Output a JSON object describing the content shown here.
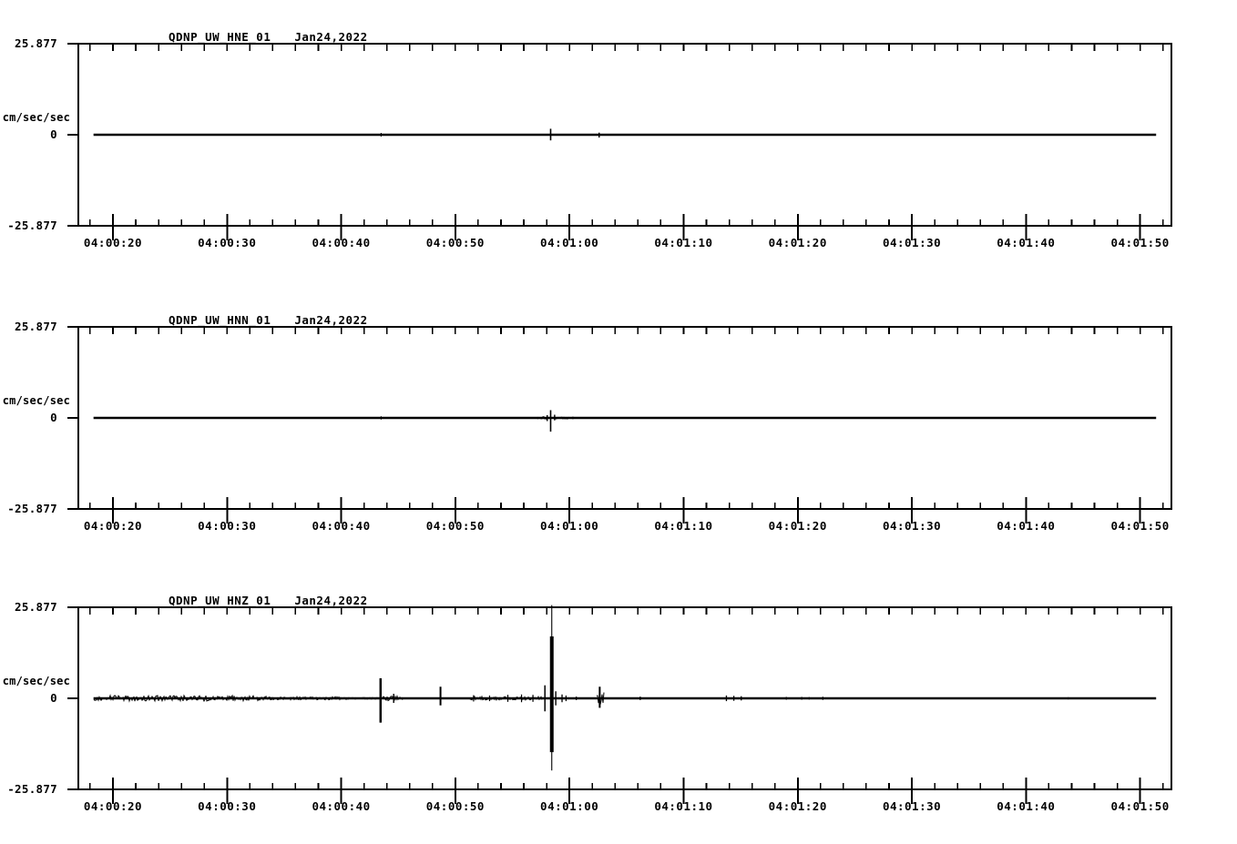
{
  "page": {
    "background": "#ffffff",
    "foreground": "#000000"
  },
  "chart_data": [
    {
      "type": "line",
      "kind": "seismogram",
      "title": "QDNP_UW_HNE_01",
      "date": "Jan24,2022",
      "ylabel": "cm/sec/sec",
      "y_ticks": [
        "25.877",
        "0",
        "-25.877"
      ],
      "ylim": [
        -25.877,
        25.877
      ],
      "x_axis": {
        "labels": [
          "04:00:20",
          "04:00:30",
          "04:00:40",
          "04:00:50",
          "04:01:00",
          "04:01:10",
          "04:01:20",
          "04:01:30",
          "04:01:40",
          "04:01:50"
        ],
        "label_secs": [
          20,
          30,
          40,
          50,
          60,
          70,
          80,
          90,
          100,
          110
        ],
        "minor_step_sec": 2,
        "t_min_sec": 16.97,
        "t_max_sec": 112.74
      },
      "trace": {
        "t_start_sec": 18.3,
        "t_end_sec": 111.4,
        "features": [
          {
            "type": "spike",
            "t": 43.5,
            "up": 0.5,
            "down": 0.5,
            "w": 1.2
          },
          {
            "type": "spike",
            "t": 58.35,
            "up": 1.7,
            "down": 1.6,
            "w": 1.6
          },
          {
            "type": "spike",
            "t": 62.6,
            "up": 0.6,
            "down": 0.8,
            "w": 1.4
          }
        ]
      }
    },
    {
      "type": "line",
      "kind": "seismogram",
      "title": "QDNP_UW_HNN_01",
      "date": "Jan24,2022",
      "ylabel": "cm/sec/sec",
      "y_ticks": [
        "25.877",
        "0",
        "-25.877"
      ],
      "ylim": [
        -25.877,
        25.877
      ],
      "x_axis": {
        "labels": [
          "04:00:20",
          "04:00:30",
          "04:00:40",
          "04:00:50",
          "04:01:00",
          "04:01:10",
          "04:01:20",
          "04:01:30",
          "04:01:40",
          "04:01:50"
        ],
        "label_secs": [
          20,
          30,
          40,
          50,
          60,
          70,
          80,
          90,
          100,
          110
        ],
        "minor_step_sec": 2,
        "t_min_sec": 16.97,
        "t_max_sec": 112.74
      },
      "trace": {
        "t_start_sec": 18.3,
        "t_end_sec": 111.4,
        "features": [
          {
            "type": "spike",
            "t": 43.5,
            "up": 0.45,
            "down": 0.45,
            "w": 1.2
          },
          {
            "type": "noise",
            "t0": 57.2,
            "t1": 58.0,
            "amp": 0.4
          },
          {
            "type": "spike",
            "t": 58.05,
            "up": 0.8,
            "down": 0.9,
            "w": 1.4
          },
          {
            "type": "spike",
            "t": 58.35,
            "up": 2.2,
            "down": 3.9,
            "w": 1.6
          },
          {
            "type": "spike",
            "t": 58.7,
            "up": 0.9,
            "down": 0.7,
            "w": 1.4
          },
          {
            "type": "noise",
            "t0": 58.6,
            "t1": 60.0,
            "amp": 0.3
          },
          {
            "type": "spike",
            "t": 60.3,
            "up": 0.35,
            "down": 0.35,
            "w": 1.2
          }
        ]
      }
    },
    {
      "type": "line",
      "kind": "seismogram",
      "title": "QDNP_UW_HNZ_01",
      "date": "Jan24,2022",
      "ylabel": "cm/sec/sec",
      "y_ticks": [
        "25.877",
        "0",
        "-25.877"
      ],
      "ylim": [
        -25.877,
        25.877
      ],
      "x_axis": {
        "labels": [
          "04:00:20",
          "04:00:30",
          "04:00:40",
          "04:00:50",
          "04:01:00",
          "04:01:10",
          "04:01:20",
          "04:01:30",
          "04:01:40",
          "04:01:50"
        ],
        "label_secs": [
          20,
          30,
          40,
          50,
          60,
          70,
          80,
          90,
          100,
          110
        ],
        "minor_step_sec": 2,
        "t_min_sec": 16.97,
        "t_max_sec": 112.74
      },
      "trace": {
        "t_start_sec": 18.3,
        "t_end_sec": 111.4,
        "features": [
          {
            "type": "noise",
            "t0": 18.3,
            "t1": 33.5,
            "amp": 0.8
          },
          {
            "type": "noise",
            "t0": 33.5,
            "t1": 40.5,
            "amp": 0.45
          },
          {
            "type": "noise",
            "t0": 40.5,
            "t1": 43.2,
            "amp": 0.25
          },
          {
            "type": "spike",
            "t": 43.45,
            "up": 5.7,
            "down": 6.9,
            "w": 2.5
          },
          {
            "type": "noise",
            "t0": 43.6,
            "t1": 45.4,
            "amp": 0.7
          },
          {
            "type": "spike",
            "t": 44.6,
            "up": 1.3,
            "down": 1.3,
            "w": 1.4
          },
          {
            "type": "spike",
            "t": 48.7,
            "up": 3.3,
            "down": 2.0,
            "w": 2
          },
          {
            "type": "noise",
            "t0": 51.2,
            "t1": 57.6,
            "amp": 0.5
          },
          {
            "type": "spike",
            "t": 51.6,
            "up": 0.9,
            "down": 0.9,
            "w": 1.2
          },
          {
            "type": "spike",
            "t": 53.0,
            "up": 0.8,
            "down": 0.8,
            "w": 1.2
          },
          {
            "type": "spike",
            "t": 54.6,
            "up": 1.0,
            "down": 1.0,
            "w": 1.2
          },
          {
            "type": "spike",
            "t": 55.8,
            "up": 1.1,
            "down": 1.1,
            "w": 1.2
          },
          {
            "type": "spike",
            "t": 56.8,
            "up": 1.0,
            "down": 1.0,
            "w": 1.2
          },
          {
            "type": "spike",
            "t": 57.85,
            "up": 3.7,
            "down": 3.7,
            "w": 1.5
          },
          {
            "type": "spike",
            "t": 58.45,
            "up": 26.5,
            "down": 20.5,
            "w": 1.1,
            "core_up": 17.6,
            "core_down": 15.3,
            "core_w": 4
          },
          {
            "type": "spike",
            "t": 58.8,
            "up": 2.0,
            "down": 2.0,
            "w": 1.4
          },
          {
            "type": "spike",
            "t": 59.35,
            "up": 1.1,
            "down": 1.1,
            "w": 1.3
          },
          {
            "type": "spike",
            "t": 59.7,
            "up": 0.8,
            "down": 0.8,
            "w": 1.2
          },
          {
            "type": "spike",
            "t": 60.6,
            "up": 0.5,
            "down": 0.5,
            "w": 1.2
          },
          {
            "type": "noise",
            "t0": 62.4,
            "t1": 63.0,
            "amp": 2.6
          },
          {
            "type": "spike",
            "t": 62.65,
            "up": 3.3,
            "down": 2.7,
            "w": 2
          },
          {
            "type": "spike",
            "t": 66.2,
            "up": 0.5,
            "down": 0.5,
            "w": 1.2
          },
          {
            "type": "spike",
            "t": 73.75,
            "up": 0.8,
            "down": 0.8,
            "w": 1.3
          },
          {
            "type": "spike",
            "t": 74.4,
            "up": 0.7,
            "down": 0.7,
            "w": 1.3
          },
          {
            "type": "spike",
            "t": 75.05,
            "up": 0.6,
            "down": 0.6,
            "w": 1.3
          },
          {
            "type": "spike",
            "t": 79.0,
            "up": 0.4,
            "down": 0.4,
            "w": 1.2
          },
          {
            "type": "spike",
            "t": 80.35,
            "up": 0.4,
            "down": 0.4,
            "w": 1.2
          },
          {
            "type": "spike",
            "t": 81.0,
            "up": 0.35,
            "down": 0.35,
            "w": 1.2
          },
          {
            "type": "spike",
            "t": 82.2,
            "up": 0.45,
            "down": 0.45,
            "w": 1.2
          },
          {
            "type": "spike",
            "t": 103.7,
            "up": 0.3,
            "down": 0.3,
            "w": 1.2
          }
        ]
      }
    }
  ]
}
